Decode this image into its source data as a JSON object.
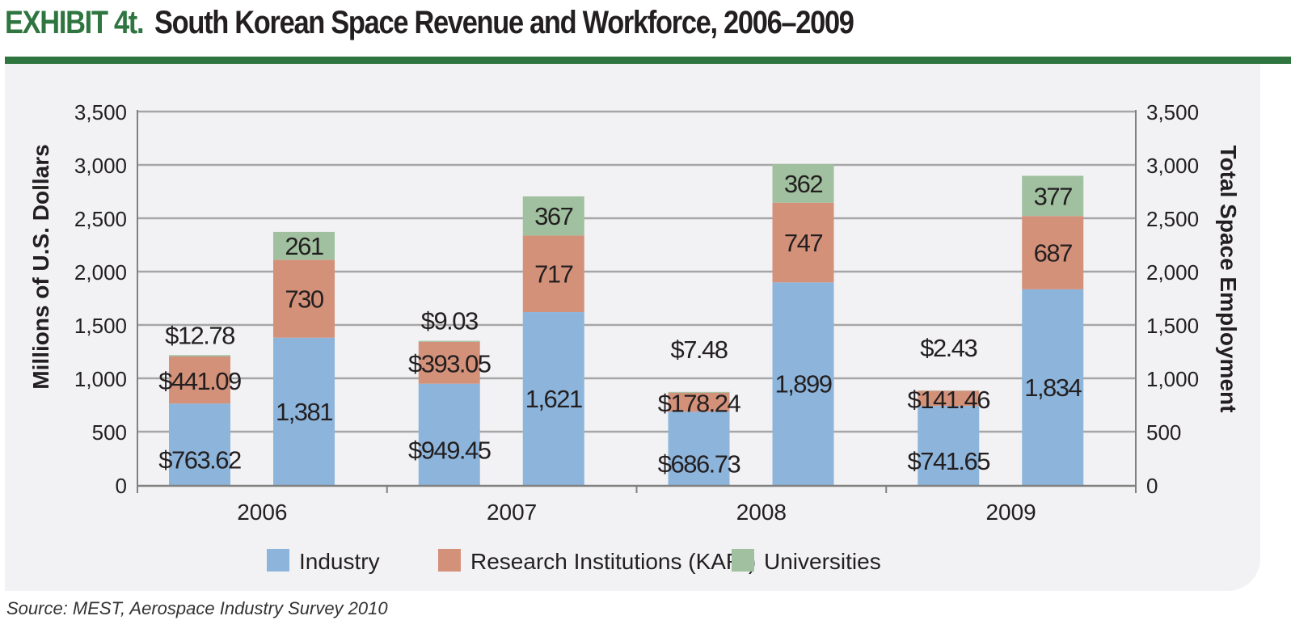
{
  "header": {
    "exhibit": "EXHIBIT 4t.",
    "title": "South Korean Space Revenue and Workforce, 2006–2009"
  },
  "source": "Source: MEST, Aerospace Industry Survey 2010",
  "chart_data": {
    "type": "bar",
    "stacked": true,
    "categories": [
      "2006",
      "2007",
      "2008",
      "2009"
    ],
    "ylabel": "Millions of U.S. Dollars",
    "y2label": "Total Space Employment",
    "ylim": [
      0,
      3500
    ],
    "y2lim": [
      0,
      3500
    ],
    "yticks": [
      "0",
      "500",
      "1,000",
      "1,500",
      "2,000",
      "2,500",
      "3,000",
      "3,500"
    ],
    "grid": true,
    "legend_position": "bottom",
    "series_names": [
      "Industry",
      "Research Institutions (KARI)",
      "Universities"
    ],
    "colors": [
      "#8db5dc",
      "#d4917a",
      "#a0c09f"
    ],
    "revenue": {
      "Industry": [
        763.62,
        949.45,
        686.73,
        741.65
      ],
      "Research Institutions (KARI)": [
        441.09,
        393.05,
        178.24,
        141.46
      ],
      "Universities": [
        12.78,
        9.03,
        7.48,
        2.43
      ],
      "labels": [
        [
          "$763.62",
          "$441.09",
          "$12.78"
        ],
        [
          "$949.45",
          "$393.05",
          "$9.03"
        ],
        [
          "$686.73",
          "$178.24",
          "$7.48"
        ],
        [
          "$741.65",
          "$141.46",
          "$2.43"
        ]
      ]
    },
    "employment": {
      "Industry": [
        1381,
        1621,
        1899,
        1834
      ],
      "Research Institutions (KARI)": [
        730,
        717,
        747,
        687
      ],
      "Universities": [
        261,
        367,
        362,
        377
      ],
      "labels": [
        [
          "1,381",
          "730",
          "261"
        ],
        [
          "1,621",
          "717",
          "367"
        ],
        [
          "1,899",
          "747",
          "362"
        ],
        [
          "1,834",
          "687",
          "377"
        ]
      ]
    }
  }
}
